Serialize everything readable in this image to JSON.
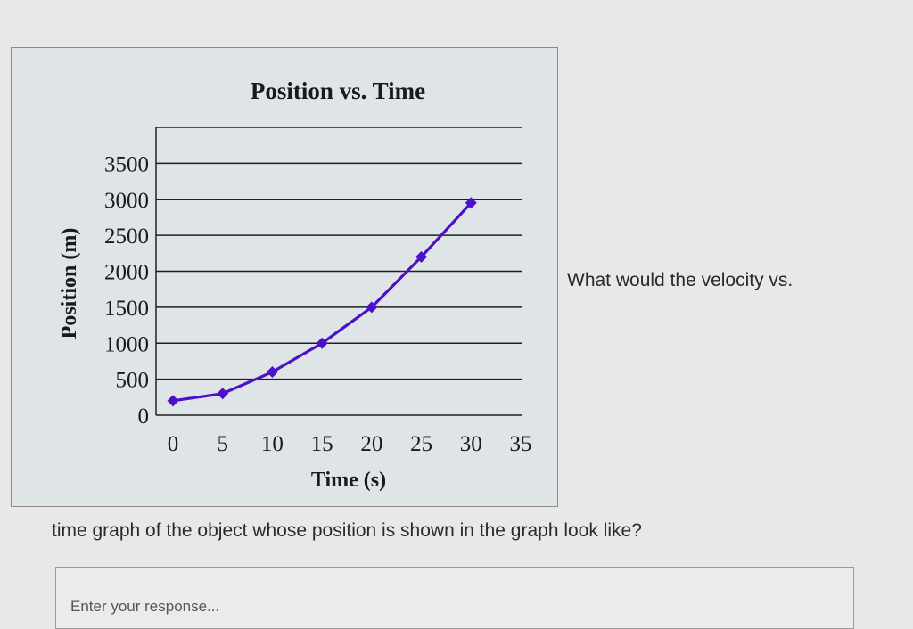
{
  "question": {
    "part1": "What would the velocity vs.",
    "part2": "time graph of the object whose position is shown in the graph look like?"
  },
  "response": {
    "placeholder": "Enter your response..."
  },
  "chart_data": {
    "type": "line",
    "title": "Position vs. Time",
    "xlabel": "Time (s)",
    "ylabel": "Position (m)",
    "xlim": [
      0,
      35
    ],
    "ylim": [
      0,
      4000
    ],
    "x_ticks": [
      "0",
      "5",
      "10",
      "15",
      "20",
      "25",
      "30",
      "35"
    ],
    "y_ticks": [
      "0",
      "500",
      "1000",
      "1500",
      "2000",
      "2500",
      "3000",
      "3500"
    ],
    "grid": true,
    "series": [
      {
        "x": [
          0,
          5,
          10,
          15,
          20,
          25,
          30
        ],
        "y": [
          200,
          300,
          600,
          1000,
          1500,
          2200,
          2950
        ],
        "color": "#4b12c8"
      }
    ]
  }
}
